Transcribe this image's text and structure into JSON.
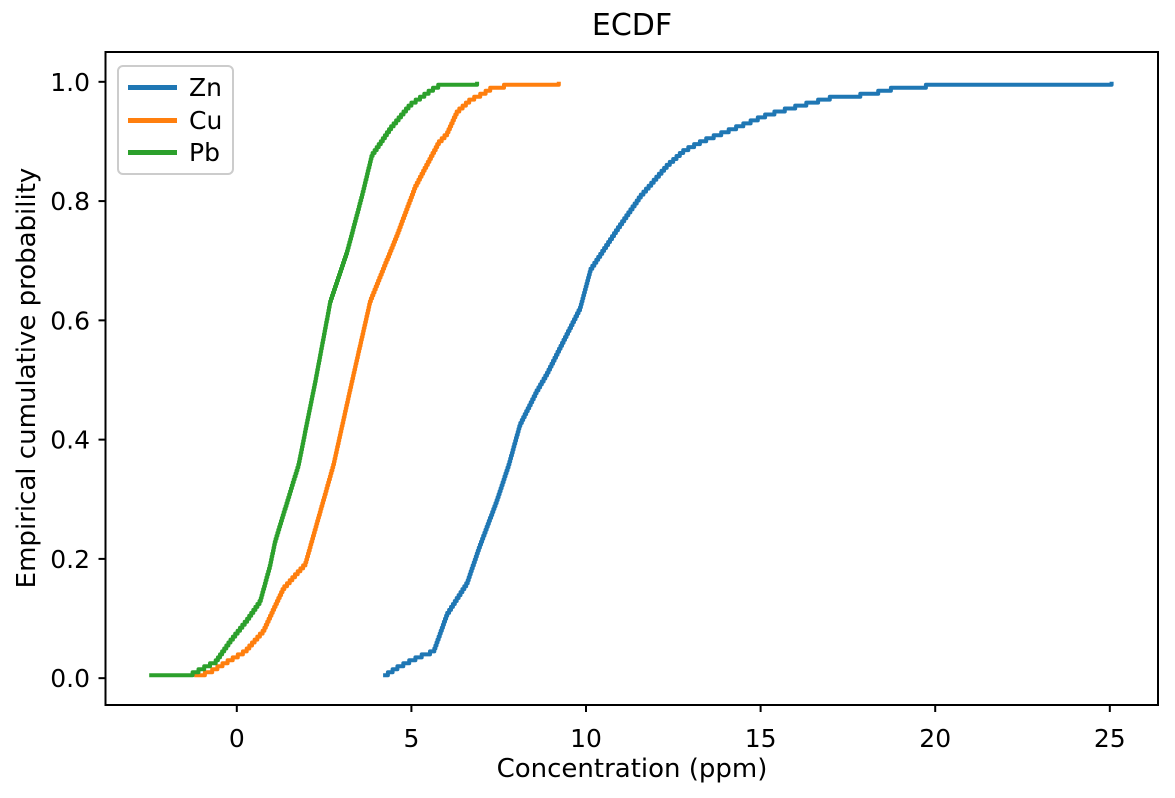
{
  "chart_data": {
    "type": "line",
    "subtype": "ecdf-step",
    "title": "ECDF",
    "xlabel": "Concentration (ppm)",
    "ylabel": "Empirical cumulative probability",
    "x_ticks": [
      "0",
      "5",
      "10",
      "15",
      "20",
      "25"
    ],
    "x_tick_values": [
      0,
      5,
      10,
      15,
      20,
      25
    ],
    "y_ticks": [
      "0.0",
      "0.2",
      "0.4",
      "0.6",
      "0.8",
      "1.0"
    ],
    "y_tick_values": [
      0,
      0.2,
      0.4,
      0.6,
      0.8,
      1.0
    ],
    "xlim": [
      -3.76,
      26.38
    ],
    "ylim": [
      -0.045,
      1.05
    ],
    "grid": false,
    "legend_position": "upper-left",
    "axes_color": "#000000",
    "background_color": "#ffffff",
    "series": [
      {
        "name": "Zn",
        "color": "#1f77b4",
        "ecdf_points": [
          [
            4.19,
            0.005
          ],
          [
            4.6,
            0.02
          ],
          [
            4.94,
            0.03
          ],
          [
            5.3,
            0.04
          ],
          [
            5.64,
            0.047
          ],
          [
            6.02,
            0.109
          ],
          [
            6.6,
            0.162
          ],
          [
            6.93,
            0.219
          ],
          [
            7.45,
            0.3
          ],
          [
            7.79,
            0.36
          ],
          [
            8.11,
            0.427
          ],
          [
            8.59,
            0.483
          ],
          [
            8.87,
            0.511
          ],
          [
            9.25,
            0.555
          ],
          [
            9.83,
            0.622
          ],
          [
            10.13,
            0.687
          ],
          [
            10.9,
            0.755
          ],
          [
            11.57,
            0.811
          ],
          [
            12.33,
            0.862
          ],
          [
            12.81,
            0.887
          ],
          [
            13.38,
            0.904
          ],
          [
            14.24,
            0.924
          ],
          [
            15.2,
            0.947
          ],
          [
            16.16,
            0.963
          ],
          [
            17.11,
            0.977
          ],
          [
            18.07,
            0.981
          ],
          [
            19.02,
            0.994
          ],
          [
            21.8,
            0.998
          ],
          [
            25.05,
            1.0
          ]
        ]
      },
      {
        "name": "Cu",
        "color": "#ff7f0e",
        "ecdf_points": [
          [
            -1.22,
            0.005
          ],
          [
            -0.79,
            0.012
          ],
          [
            0.24,
            0.047
          ],
          [
            0.76,
            0.081
          ],
          [
            1.34,
            0.153
          ],
          [
            1.96,
            0.193
          ],
          [
            2.15,
            0.232
          ],
          [
            2.77,
            0.36
          ],
          [
            3.3,
            0.5
          ],
          [
            3.82,
            0.634
          ],
          [
            4.59,
            0.745
          ],
          [
            5.11,
            0.826
          ],
          [
            5.78,
            0.9
          ],
          [
            6.02,
            0.915
          ],
          [
            6.31,
            0.952
          ],
          [
            6.69,
            0.972
          ],
          [
            7.07,
            0.983
          ],
          [
            7.36,
            0.994
          ],
          [
            7.93,
            0.996
          ],
          [
            9.0,
            0.996
          ],
          [
            9.22,
            1.0
          ]
        ]
      },
      {
        "name": "Pb",
        "color": "#2ca02c",
        "ecdf_points": [
          [
            -2.51,
            0.005
          ],
          [
            -1.26,
            0.01
          ],
          [
            -0.6,
            0.03
          ],
          [
            -0.19,
            0.064
          ],
          [
            0.3,
            0.1
          ],
          [
            0.67,
            0.131
          ],
          [
            0.95,
            0.19
          ],
          [
            1.1,
            0.232
          ],
          [
            1.77,
            0.36
          ],
          [
            2.25,
            0.5
          ],
          [
            2.68,
            0.634
          ],
          [
            3.16,
            0.717
          ],
          [
            3.59,
            0.812
          ],
          [
            3.87,
            0.879
          ],
          [
            4.4,
            0.924
          ],
          [
            4.97,
            0.964
          ],
          [
            5.74,
            0.995
          ],
          [
            6.8,
            0.996
          ],
          [
            6.88,
            1.0
          ]
        ]
      }
    ]
  }
}
